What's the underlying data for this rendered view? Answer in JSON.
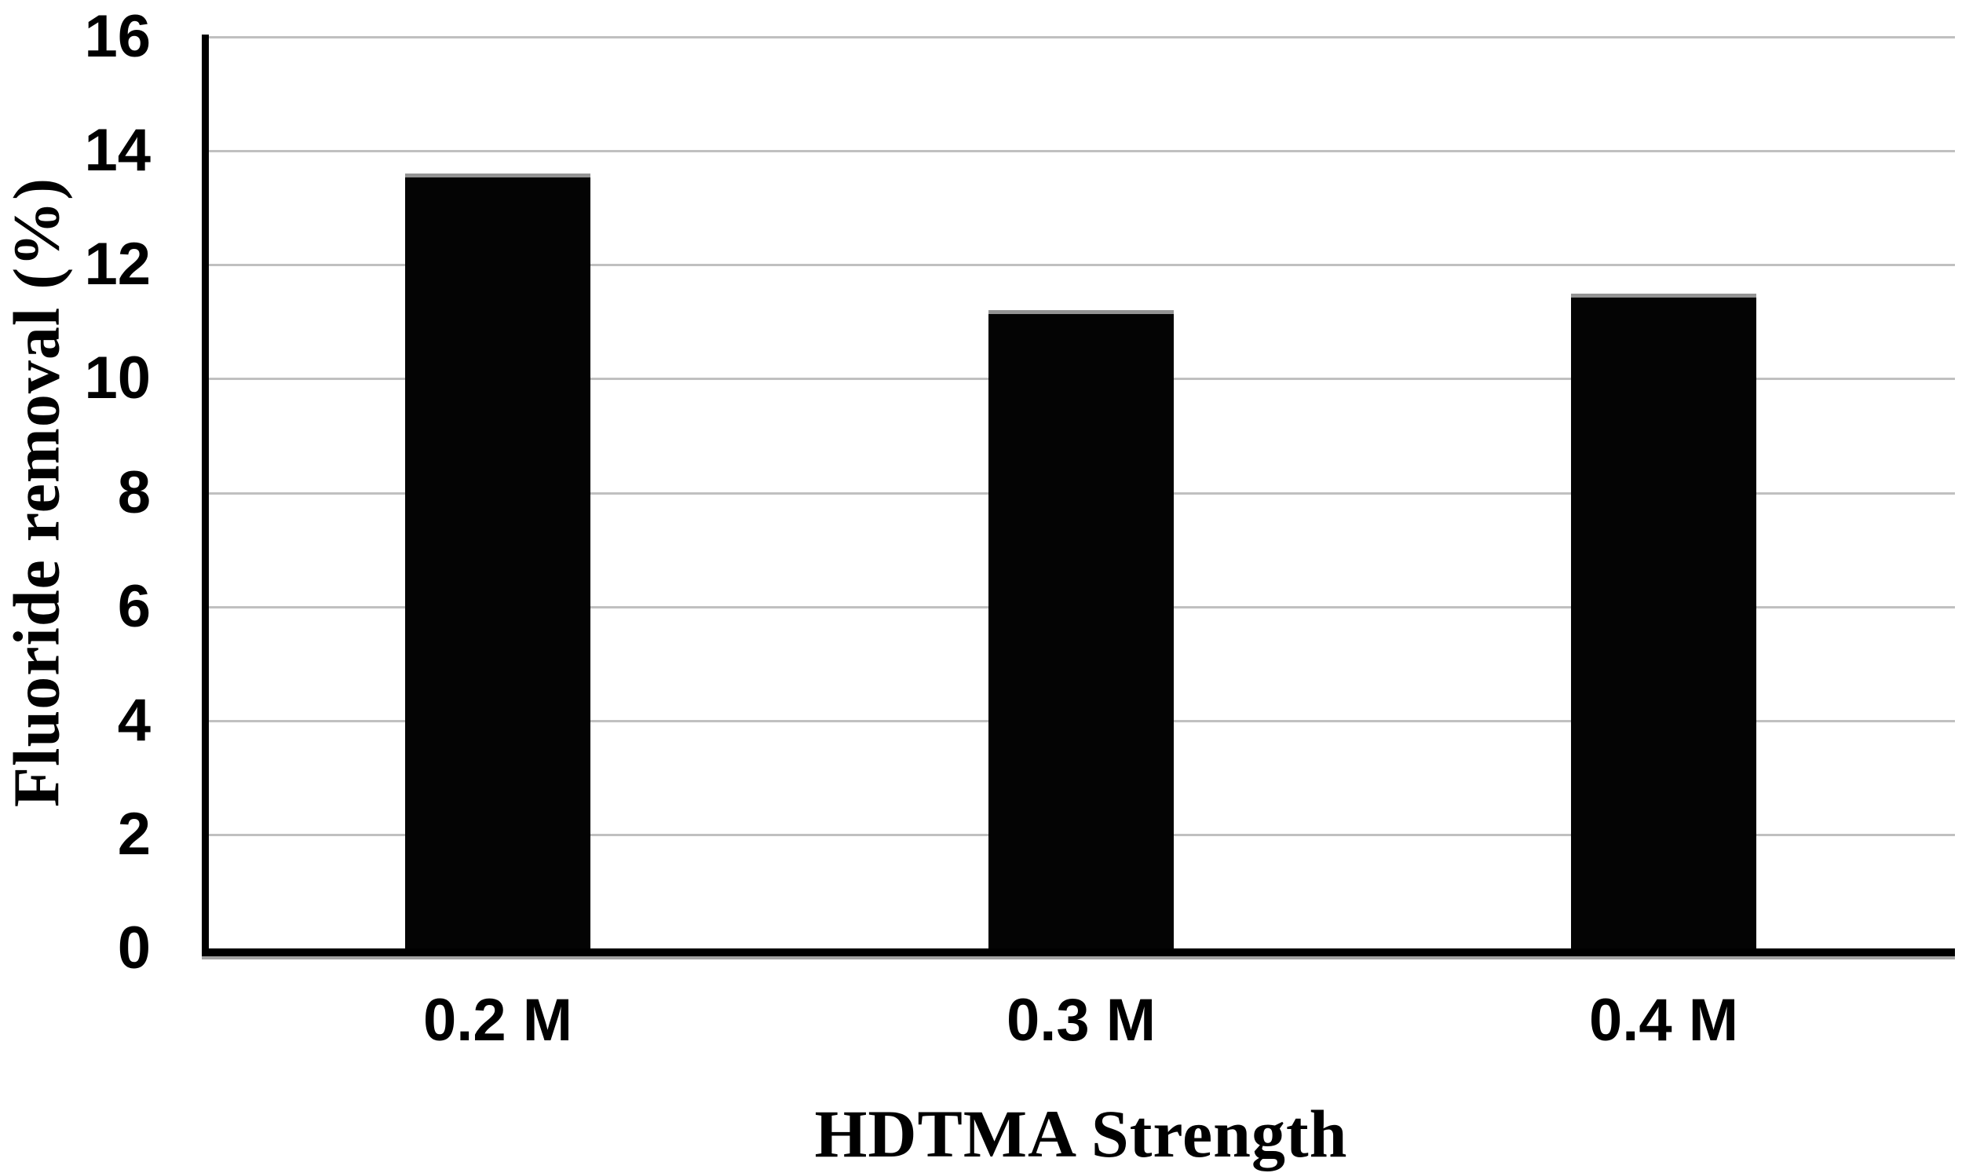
{
  "chart_data": {
    "type": "bar",
    "categories": [
      "0.2 M",
      "0.3 M",
      "0.4 M"
    ],
    "values": [
      13.6,
      11.2,
      11.5
    ],
    "title": "",
    "xlabel": "HDTMA Strength",
    "ylabel": "Fluoride removal (%)",
    "ylim": [
      0,
      16
    ],
    "ytick_step": 2,
    "yticks": [
      16,
      14,
      12,
      10,
      8,
      6,
      4,
      2,
      0
    ],
    "grid": true,
    "legend_position": "none",
    "bar_color": "#040404",
    "bar_top_edge_color": "#949494",
    "gridline_color": "#c0c0c0",
    "axis_color": "#000000",
    "background_color": "#ffffff"
  }
}
